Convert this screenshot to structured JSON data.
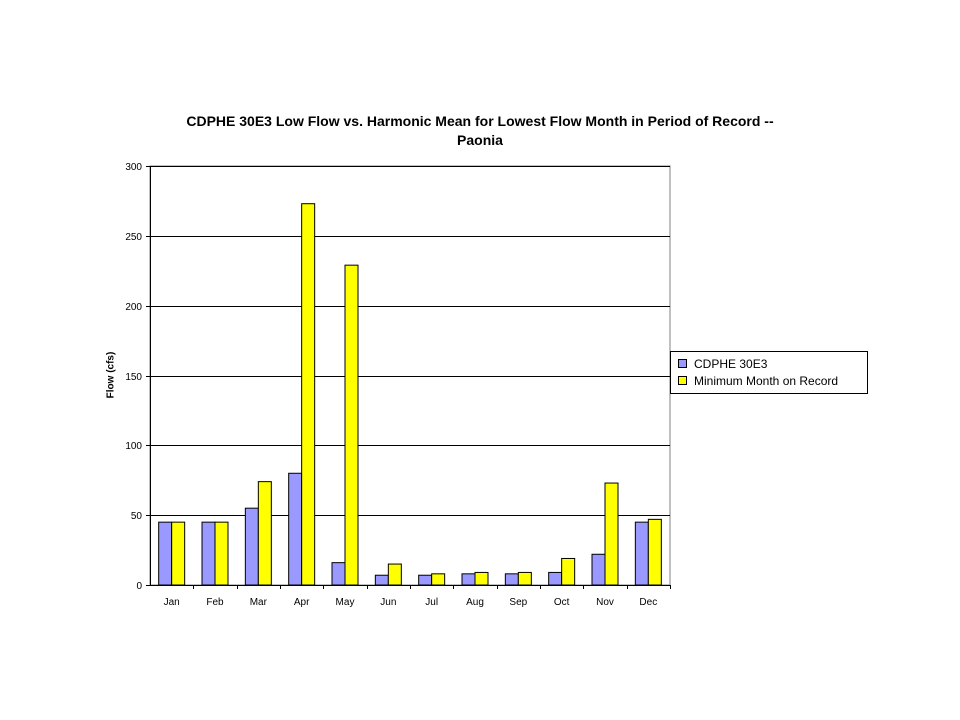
{
  "chart_data": {
    "type": "bar",
    "title": [
      "CDPHE 30E3 Low Flow vs. Harmonic Mean for Lowest Flow Month in Period of Record --",
      "Paonia"
    ],
    "xlabel": "",
    "ylabel": "Flow (cfs)",
    "ylim": [
      0,
      300
    ],
    "yticks": [
      0,
      50,
      100,
      150,
      200,
      250,
      300
    ],
    "grid": true,
    "legend_position": "right",
    "categories": [
      "Jan",
      "Feb",
      "Mar",
      "Apr",
      "May",
      "Jun",
      "Jul",
      "Aug",
      "Sep",
      "Oct",
      "Nov",
      "Dec"
    ],
    "series": [
      {
        "name": "CDPHE 30E3",
        "color": "#9999ff",
        "values": [
          45,
          45,
          55,
          80,
          16,
          7,
          7,
          8,
          8,
          9,
          22,
          45
        ]
      },
      {
        "name": "Minimum Month on Record",
        "color": "#ffff00",
        "values": [
          45,
          45,
          74,
          273,
          229,
          15,
          8,
          9,
          9,
          19,
          73,
          47
        ]
      }
    ]
  }
}
